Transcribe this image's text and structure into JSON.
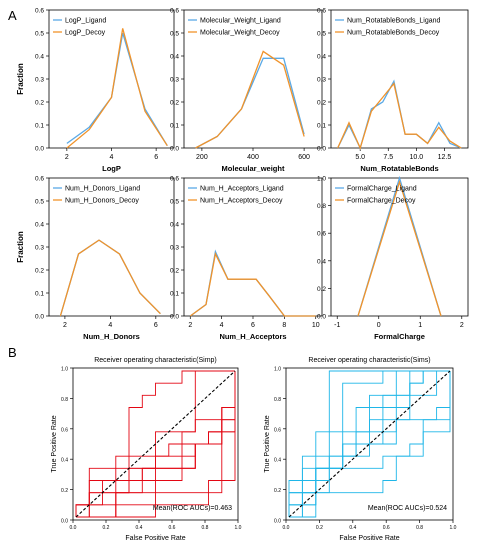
{
  "panel_labels": {
    "a": "A",
    "b": "B"
  },
  "colors": {
    "ligand": "#5aa9e6",
    "decoy": "#f0932b",
    "roc_simp": "#e30613",
    "roc_sims": "#1fb6e8",
    "diag": "#000000"
  },
  "chart_data": [
    {
      "id": "logp",
      "type": "line",
      "xlabel": "LogP",
      "ylabel": "Fraction",
      "xlim": [
        1.2,
        6.8
      ],
      "ylim": [
        0,
        0.6
      ],
      "xticks": [
        2,
        4,
        6
      ],
      "yticks": [
        0.0,
        0.1,
        0.2,
        0.3,
        0.4,
        0.5,
        0.6
      ],
      "series": [
        {
          "name": "LogP_Ligand",
          "x": [
            2,
            3,
            4,
            4.5,
            5.5,
            6.5
          ],
          "y": [
            0.02,
            0.09,
            0.22,
            0.5,
            0.17,
            0.01
          ]
        },
        {
          "name": "LogP_Decoy",
          "x": [
            2,
            3,
            4,
            4.5,
            5.5,
            6.5
          ],
          "y": [
            0.0,
            0.08,
            0.22,
            0.52,
            0.16,
            0.01
          ]
        }
      ]
    },
    {
      "id": "molwt",
      "type": "line",
      "xlabel": "Molecular_weight",
      "ylabel": "",
      "xlim": [
        130,
        670
      ],
      "ylim": [
        0,
        0.6
      ],
      "xticks": [
        200,
        400,
        600
      ],
      "yticks": [
        0.0,
        0.1,
        0.2,
        0.3,
        0.4,
        0.5,
        0.6
      ],
      "series": [
        {
          "name": "Molecular_Weight_Ligand",
          "x": [
            175,
            260,
            355,
            440,
            520,
            600
          ],
          "y": [
            0.0,
            0.05,
            0.17,
            0.39,
            0.39,
            0.06
          ]
        },
        {
          "name": "Molecular_Weight_Decoy",
          "x": [
            175,
            260,
            355,
            440,
            520,
            600
          ],
          "y": [
            0.0,
            0.05,
            0.17,
            0.42,
            0.36,
            0.05
          ]
        }
      ]
    },
    {
      "id": "rotb",
      "type": "line",
      "xlabel": "Num_RotatableBonds",
      "ylabel": "",
      "xlim": [
        2.4,
        14.6
      ],
      "ylim": [
        0,
        0.6
      ],
      "xticks": [
        5.0,
        7.5,
        10.0,
        12.5
      ],
      "tick_labels": [
        "5.0",
        "7.5",
        "10.0",
        "12.5"
      ],
      "yticks": [
        0.0,
        0.1,
        0.2,
        0.3,
        0.4,
        0.5,
        0.6
      ],
      "series": [
        {
          "name": "Num_RotatableBonds_Ligand",
          "x": [
            3,
            4,
            5,
            6,
            7,
            8,
            9,
            10,
            11,
            12,
            13,
            14
          ],
          "y": [
            0.0,
            0.1,
            0.0,
            0.17,
            0.2,
            0.29,
            0.06,
            0.06,
            0.02,
            0.11,
            0.02,
            0.0
          ]
        },
        {
          "name": "Num_RotatableBonds_Decoy",
          "x": [
            3,
            4,
            5,
            6,
            7,
            8,
            9,
            10,
            11,
            12,
            13,
            14
          ],
          "y": [
            0.0,
            0.11,
            0.0,
            0.16,
            0.22,
            0.28,
            0.06,
            0.06,
            0.02,
            0.09,
            0.03,
            0.0
          ]
        }
      ]
    },
    {
      "id": "hdon",
      "type": "line",
      "xlabel": "Num_H_Donors",
      "ylabel": "Fraction",
      "xlim": [
        1.3,
        6.8
      ],
      "ylim": [
        0,
        0.6
      ],
      "xticks": [
        2,
        4,
        6
      ],
      "yticks": [
        0.0,
        0.1,
        0.2,
        0.3,
        0.4,
        0.5,
        0.6
      ],
      "series": [
        {
          "name": "Num_H_Donors_Ligand",
          "x": [
            1.8,
            2.6,
            3.5,
            4.4,
            5.3,
            6.2
          ],
          "y": [
            0.0,
            0.27,
            0.33,
            0.27,
            0.1,
            0.01
          ]
        },
        {
          "name": "Num_H_Donors_Decoy",
          "x": [
            1.8,
            2.6,
            3.5,
            4.4,
            5.3,
            6.2
          ],
          "y": [
            0.0,
            0.27,
            0.33,
            0.27,
            0.1,
            0.01
          ]
        }
      ]
    },
    {
      "id": "hacc",
      "type": "line",
      "xlabel": "Num_H_Acceptors",
      "ylabel": "",
      "xlim": [
        1.6,
        10.4
      ],
      "ylim": [
        0,
        0.6
      ],
      "xticks": [
        2,
        4,
        6,
        8,
        10
      ],
      "yticks": [
        0.0,
        0.1,
        0.2,
        0.3,
        0.4,
        0.5,
        0.6
      ],
      "series": [
        {
          "name": "Num_H_Acceptors_Ligand",
          "x": [
            2,
            3,
            3.6,
            4.4,
            5.3,
            6.2,
            7,
            8,
            9,
            10
          ],
          "y": [
            0.0,
            0.05,
            0.28,
            0.16,
            0.16,
            0.16,
            0.09,
            0.0,
            0.0,
            0.0
          ]
        },
        {
          "name": "Num_H_Acceptors_Decoy",
          "x": [
            2,
            3,
            3.6,
            4.4,
            5.3,
            6.2,
            7,
            8,
            9,
            10
          ],
          "y": [
            0.0,
            0.05,
            0.27,
            0.16,
            0.16,
            0.16,
            0.09,
            0.0,
            0.0,
            0.0
          ]
        }
      ]
    },
    {
      "id": "charge",
      "type": "line",
      "xlabel": "FormalCharge",
      "ylabel": "",
      "xlim": [
        -1.15,
        2.15
      ],
      "ylim": [
        0,
        1.0
      ],
      "xticks": [
        -1,
        0,
        1,
        2
      ],
      "yticks": [
        0.0,
        0.2,
        0.4,
        0.6,
        0.8,
        1.0
      ],
      "series": [
        {
          "name": "FormalCharge_Ligand",
          "x": [
            -0.5,
            0.5,
            1.5
          ],
          "y": [
            0.0,
            1.0,
            0.0
          ]
        },
        {
          "name": "FormalCharge_Decoy",
          "x": [
            -0.5,
            0.5,
            1.5
          ],
          "y": [
            0.0,
            0.97,
            0.0
          ]
        }
      ]
    },
    {
      "id": "roc_simp",
      "type": "line",
      "title": "Receiver operating characteristic(Simp)",
      "xlabel": "False Positive Rate",
      "ylabel": "True Positive Rate",
      "xlim": [
        0,
        1
      ],
      "ylim": [
        0,
        1
      ],
      "xticks": [
        0.0,
        0.2,
        0.4,
        0.6,
        0.8,
        1.0
      ],
      "yticks": [
        0.0,
        0.2,
        0.4,
        0.6,
        0.8,
        1.0
      ],
      "annotation": "Mean(ROC AUCs)=0.463",
      "mean_auc": 0.463,
      "num_curves": 10
    },
    {
      "id": "roc_sims",
      "type": "line",
      "title": "Receiver operating characteristic(Sims)",
      "xlabel": "False Positive Rate",
      "ylabel": "True Positive Rate",
      "xlim": [
        0,
        1
      ],
      "ylim": [
        0,
        1
      ],
      "xticks": [
        0.0,
        0.2,
        0.4,
        0.6,
        0.8,
        1.0
      ],
      "yticks": [
        0.0,
        0.2,
        0.4,
        0.6,
        0.8,
        1.0
      ],
      "annotation": "Mean(ROC AUCs)=0.524",
      "mean_auc": 0.524,
      "num_curves": 10
    }
  ]
}
